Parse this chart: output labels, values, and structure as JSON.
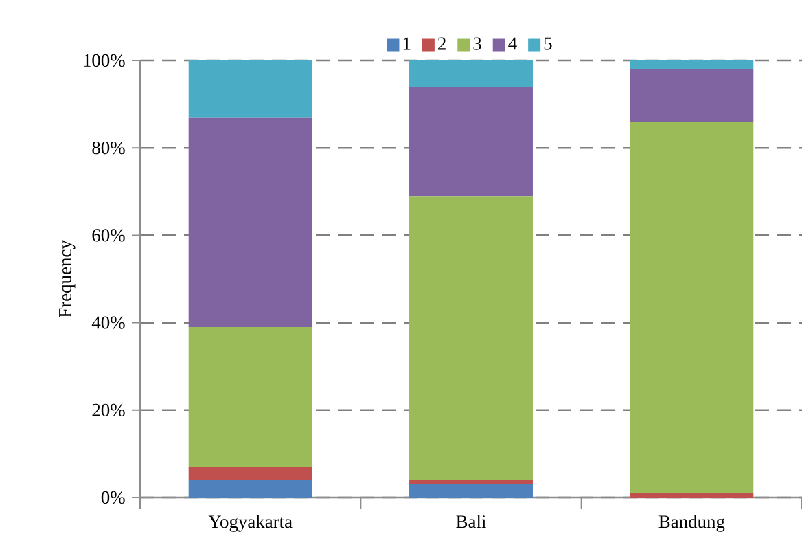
{
  "chart_data": {
    "type": "bar",
    "stacked": true,
    "ylabel": "Frequency",
    "categories": [
      "Yogyakarta",
      "Bali",
      "Bandung"
    ],
    "series": [
      {
        "name": "1",
        "color": "#4f81bd",
        "values": [
          4,
          3,
          0
        ]
      },
      {
        "name": "2",
        "color": "#c0504d",
        "values": [
          3,
          1,
          1
        ]
      },
      {
        "name": "3",
        "color": "#9bbb59",
        "values": [
          32,
          65,
          85
        ]
      },
      {
        "name": "4",
        "color": "#8064a2",
        "values": [
          48,
          25,
          12
        ]
      },
      {
        "name": "5",
        "color": "#4bacc6",
        "values": [
          13,
          6,
          2
        ]
      }
    ],
    "ylim": [
      0,
      100
    ],
    "yticks": [
      {
        "value": 0,
        "label": "0%"
      },
      {
        "value": 20,
        "label": "20%"
      },
      {
        "value": 40,
        "label": "40%"
      },
      {
        "value": 60,
        "label": "60%"
      },
      {
        "value": 80,
        "label": "80%"
      },
      {
        "value": 100,
        "label": "100%"
      }
    ],
    "grid": "y",
    "legend": "top"
  }
}
